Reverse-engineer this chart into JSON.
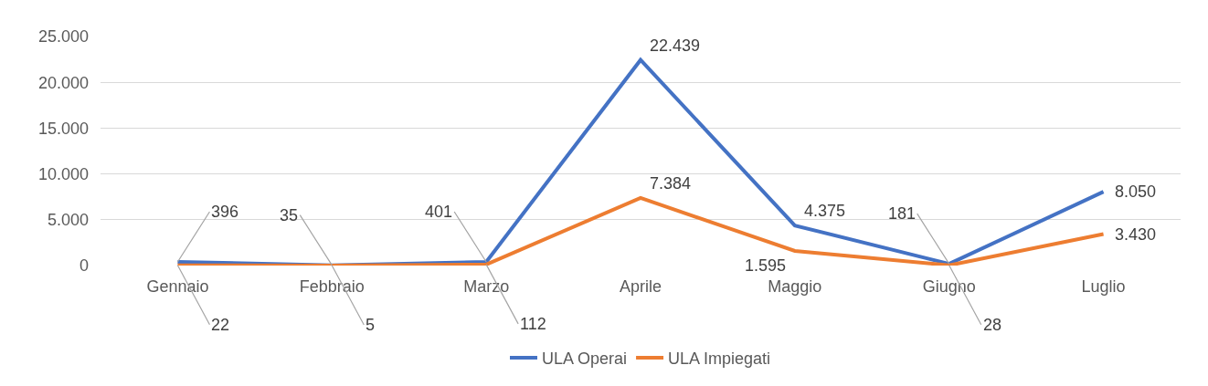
{
  "chart_data": {
    "type": "line",
    "categories": [
      "Gennaio",
      "Febbraio",
      "Marzo",
      "Aprile",
      "Maggio",
      "Giugno",
      "Luglio"
    ],
    "series": [
      {
        "name": "ULA Operai",
        "color": "#4472c4",
        "values": [
          396,
          35,
          401,
          22439,
          4375,
          181,
          8050
        ],
        "value_labels": [
          "396",
          "35",
          "401",
          "22.439",
          "4.375",
          "181",
          "8.050"
        ]
      },
      {
        "name": "ULA Impiegati",
        "color": "#ed7d31",
        "values": [
          22,
          5,
          112,
          7384,
          1595,
          28,
          3430
        ],
        "value_labels": [
          "22",
          "5",
          "112",
          "7.384",
          "1.595",
          "28",
          "3.430"
        ]
      }
    ],
    "ylim": [
      0,
      25000
    ],
    "yticks": [
      {
        "value": 0,
        "label": "0"
      },
      {
        "value": 5000,
        "label": "5.000"
      },
      {
        "value": 10000,
        "label": "10.000"
      },
      {
        "value": 15000,
        "label": "15.000"
      },
      {
        "value": 20000,
        "label": "20.000"
      },
      {
        "value": 25000,
        "label": "25.000"
      }
    ],
    "grid": "y",
    "legend": "bottom",
    "marker": "none",
    "line_style": "solid"
  }
}
